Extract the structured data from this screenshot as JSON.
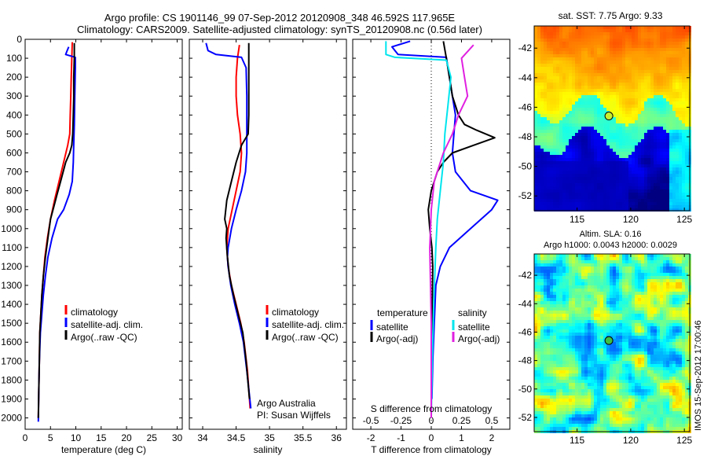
{
  "header": {
    "line1": "Argo profile: CS 1901146_99 07-Sep-2012 20120908_348 46.592S 117.965E",
    "line2": "Climatology: CARS2009. Satellite-adjusted climatology: synTS_20120908.nc (0.56d later)"
  },
  "side_credit": "IMOS 15-Sep-2012 17:00:46",
  "colors": {
    "climatology": "#ff0000",
    "satellite": "#0000ff",
    "argo": "#000000",
    "sat_salinity": "#00e5ee",
    "argo_salinity_adj": "#e020e0"
  },
  "chart_data": [
    {
      "type": "line",
      "xlabel": "temperature (deg C)",
      "ylabel": "",
      "xlim": [
        0,
        31
      ],
      "ylim": [
        2060,
        0
      ],
      "yreversed": true,
      "xticks": [
        0,
        5,
        10,
        15,
        20,
        25,
        30
      ],
      "yticks": [
        0,
        100,
        200,
        300,
        400,
        500,
        600,
        700,
        800,
        900,
        1000,
        1100,
        1200,
        1300,
        1400,
        1500,
        1600,
        1700,
        1800,
        1900,
        2000
      ],
      "legend": {
        "placement": "lower-right",
        "entries": [
          "climatology",
          "satellite-adj. clim.",
          "Argo(..raw -QC)"
        ]
      },
      "series": [
        {
          "name": "climatology",
          "color": "#ff0000",
          "x": [
            9.3,
            9.2,
            9.1,
            9.0,
            8.9,
            8.8,
            8.4,
            7.6,
            6.7,
            5.8,
            5.0,
            4.4,
            3.9,
            3.6,
            3.3,
            3.1,
            2.9,
            2.8,
            2.7,
            2.6
          ],
          "y": [
            15,
            100,
            200,
            300,
            400,
            500,
            560,
            650,
            750,
            850,
            950,
            1050,
            1150,
            1250,
            1350,
            1450,
            1550,
            1700,
            1850,
            2000
          ]
        },
        {
          "name": "satellite-adj. clim.",
          "color": "#0000ff",
          "x": [
            8.6,
            8.3,
            8.0,
            9.9,
            9.9,
            9.8,
            9.7,
            9.6,
            9.5,
            9.3,
            8.7,
            7.6,
            6.4,
            5.3,
            4.5,
            4.0,
            3.6,
            3.3,
            3.0,
            2.8,
            2.7,
            2.6
          ],
          "y": [
            40,
            60,
            80,
            95,
            150,
            300,
            450,
            550,
            650,
            750,
            820,
            900,
            950,
            1050,
            1150,
            1250,
            1350,
            1450,
            1550,
            1700,
            1850,
            2020
          ]
        },
        {
          "name": "Argo(..raw -QC)",
          "color": "#000000",
          "x": [
            9.7,
            9.7,
            9.6,
            9.6,
            9.5,
            9.4,
            9.2,
            8.8,
            8.0,
            7.0,
            6.3,
            5.7,
            5.0,
            4.5,
            4.0,
            3.6,
            3.3,
            3.1,
            2.9,
            2.8,
            2.7,
            2.6
          ],
          "y": [
            20,
            100,
            200,
            300,
            400,
            500,
            560,
            600,
            650,
            750,
            820,
            880,
            950,
            1050,
            1150,
            1250,
            1350,
            1450,
            1550,
            1700,
            1850,
            2000
          ]
        }
      ]
    },
    {
      "type": "line",
      "xlabel": "salinity",
      "ylabel": "",
      "xlim": [
        33.8,
        36.15
      ],
      "ylim": [
        2060,
        0
      ],
      "yreversed": true,
      "xticks": [
        34,
        34.5,
        35,
        35.5,
        36
      ],
      "yticks": [],
      "legend": {
        "placement": "lower-right",
        "entries": [
          "climatology",
          "satellite-adj. clim.",
          "Argo(..raw -QC)"
        ]
      },
      "annotation": [
        "Argo Australia",
        "PI: Susan Wijffels"
      ],
      "series": [
        {
          "name": "climatology",
          "color": "#ff0000",
          "x": [
            34.55,
            34.52,
            34.5,
            34.5,
            34.52,
            34.56,
            34.58,
            34.56,
            34.5,
            34.44,
            34.38,
            34.36,
            34.38,
            34.43,
            34.5,
            34.57,
            34.62,
            34.67,
            34.71
          ],
          "y": [
            30,
            100,
            200,
            300,
            400,
            500,
            600,
            700,
            800,
            900,
            1000,
            1100,
            1200,
            1300,
            1400,
            1500,
            1600,
            1750,
            1950
          ]
        },
        {
          "name": "satellite-adj. clim.",
          "color": "#0000ff",
          "x": [
            34.05,
            34.08,
            34.2,
            34.58,
            34.65,
            34.66,
            34.66,
            34.66,
            34.66,
            34.64,
            34.58,
            34.5,
            34.43,
            34.38,
            34.37,
            34.38,
            34.42,
            34.48,
            34.55,
            34.61,
            34.66,
            34.72
          ],
          "y": [
            20,
            60,
            80,
            95,
            150,
            300,
            500,
            520,
            600,
            700,
            800,
            900,
            1000,
            1100,
            1150,
            1200,
            1300,
            1400,
            1500,
            1600,
            1750,
            1950
          ]
        },
        {
          "name": "Argo(..raw -QC)",
          "color": "#000000",
          "x": [
            34.69,
            34.69,
            34.69,
            34.69,
            34.69,
            34.68,
            34.58,
            34.5,
            34.43,
            34.36,
            34.33,
            34.36,
            34.35,
            34.37,
            34.4,
            34.46,
            34.53,
            34.6,
            34.65,
            34.7
          ],
          "y": [
            20,
            100,
            200,
            300,
            400,
            500,
            560,
            650,
            750,
            850,
            950,
            1000,
            1050,
            1150,
            1250,
            1350,
            1450,
            1550,
            1700,
            1900
          ]
        }
      ]
    },
    {
      "type": "line",
      "xlabel": "T difference from climatology",
      "ylabel": "",
      "title2": "S difference from climatology",
      "xlim": [
        -2.6,
        2.6
      ],
      "ylim": [
        2060,
        0
      ],
      "yreversed": true,
      "xticks": [
        -2,
        -1,
        0,
        1,
        2
      ],
      "xticks_top_labels": [
        "-0.5",
        "-0.25",
        "0",
        "0.25",
        "0.5"
      ],
      "yticks": [],
      "legend": {
        "placement": "lower",
        "entries": [
          "temperature",
          "satellite",
          "Argo(-adj)",
          "salinity",
          "satellite",
          "Argo(-adj)"
        ]
      },
      "series": [
        {
          "name": "temperature satellite",
          "color": "#0000ff",
          "x": [
            -0.7,
            -1.3,
            -1.1,
            0.5,
            0.6,
            0.7,
            0.8,
            0.75,
            0.7,
            0.8,
            1.3,
            2.2,
            2.0,
            1.3,
            0.6,
            0.3,
            0.15,
            0.1,
            0.05,
            0.02
          ],
          "y": [
            10,
            40,
            80,
            95,
            200,
            300,
            400,
            500,
            600,
            700,
            800,
            850,
            900,
            1000,
            1100,
            1200,
            1300,
            1500,
            1700,
            1900
          ]
        },
        {
          "name": "temperature Argo(-adj)",
          "color": "#000000",
          "x": [
            0.4,
            0.5,
            0.6,
            0.7,
            0.9,
            1.1,
            1.5,
            2.1,
            1.4,
            0.7,
            0.4,
            0.2,
            0.0,
            -0.1,
            -0.05,
            0.02,
            0.05,
            0.03,
            0.02,
            0.0
          ],
          "y": [
            10,
            100,
            200,
            300,
            400,
            450,
            480,
            520,
            560,
            600,
            650,
            700,
            800,
            900,
            1000,
            1100,
            1200,
            1400,
            1600,
            1850
          ]
        },
        {
          "name": "salinity satellite",
          "color": "#00e5ee",
          "x": [
            -1.5,
            -1.5,
            -1.2,
            0.5,
            0.65,
            0.55,
            0.45,
            0.4,
            0.3,
            0.2,
            0.15,
            0.08,
            0.03,
            0.0
          ],
          "y": [
            10,
            80,
            95,
            110,
            200,
            350,
            500,
            650,
            800,
            950,
            1100,
            1400,
            1700,
            2000
          ]
        },
        {
          "name": "salinity Argo(-adj)",
          "color": "#e020e0",
          "x": [
            1.4,
            1.0,
            1.1,
            1.2,
            0.9,
            0.7,
            0.4,
            0.1,
            0.0,
            -0.05,
            0.0,
            0.0
          ],
          "y": [
            30,
            100,
            200,
            300,
            400,
            500,
            600,
            750,
            900,
            1100,
            1500,
            2000
          ]
        }
      ]
    },
    {
      "type": "heatmap",
      "title": "sat. SST: 7.75 Argo: 9.33",
      "xticks": [
        115,
        120,
        125
      ],
      "yticks": [
        -42,
        -44,
        -46,
        -48,
        -50,
        -52
      ],
      "xlim": [
        111,
        125.5
      ],
      "ylim": [
        -53,
        -40.5
      ],
      "marker": {
        "lon": 117.965,
        "lat": -46.592,
        "color": "#c8ee30"
      }
    },
    {
      "type": "heatmap",
      "title": "Altim. SLA: 0.16",
      "subtitle": "Argo h1000: 0.0043 h2000: 0.0029",
      "xticks": [
        115,
        120,
        125
      ],
      "yticks": [
        -42,
        -44,
        -46,
        -48,
        -50,
        -52
      ],
      "xlim": [
        111,
        125.5
      ],
      "ylim": [
        -53,
        -40.5
      ],
      "marker": {
        "lon": 117.965,
        "lat": -46.592,
        "color": "#40c040"
      }
    }
  ]
}
